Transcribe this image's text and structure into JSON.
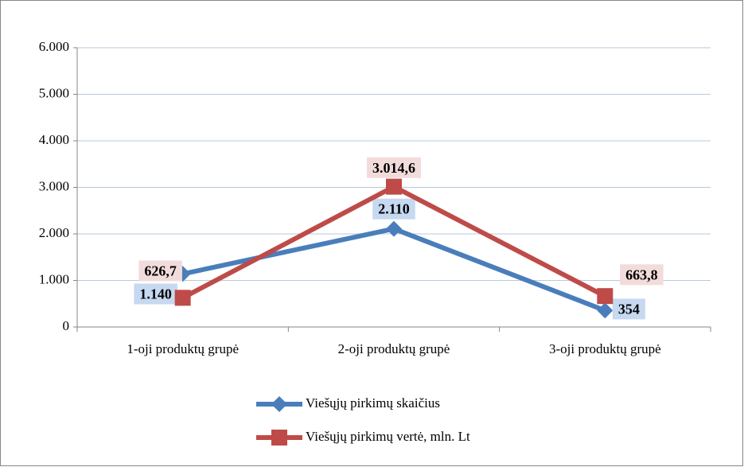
{
  "chart_data": {
    "type": "line",
    "categories": [
      "1-oji produktų grupė",
      "2-oji produktų grupė",
      "3-oji produktų grupė"
    ],
    "series": [
      {
        "name": "Viešųjų pirkimų skaičius",
        "color": "#4a7ebb",
        "marker": "diamond",
        "label_color": "#c6d9f1",
        "values": [
          1140,
          2110,
          354
        ],
        "value_labels": [
          "1.140",
          "2.110",
          "354"
        ]
      },
      {
        "name": "Viešųjų pirkimų vertė, mln. Lt",
        "color": "#be4b48",
        "marker": "square",
        "label_color": "#f2dcdb",
        "values": [
          626.7,
          3014.6,
          663.8
        ],
        "value_labels": [
          "626,7",
          "3.014,6",
          "663,8"
        ]
      }
    ],
    "ylim": [
      0,
      6000
    ],
    "yticks": [
      0,
      {
        "value": 1000,
        "label": "1.000"
      },
      {
        "value": 2000,
        "label": "2.000"
      },
      {
        "value": 3000,
        "label": "3.000"
      },
      {
        "value": 4000,
        "label": "4.000"
      },
      {
        "value": 5000,
        "label": "5.000"
      },
      {
        "value": 6000,
        "label": "6.000"
      }
    ],
    "grid": true,
    "legend": "bottom"
  }
}
